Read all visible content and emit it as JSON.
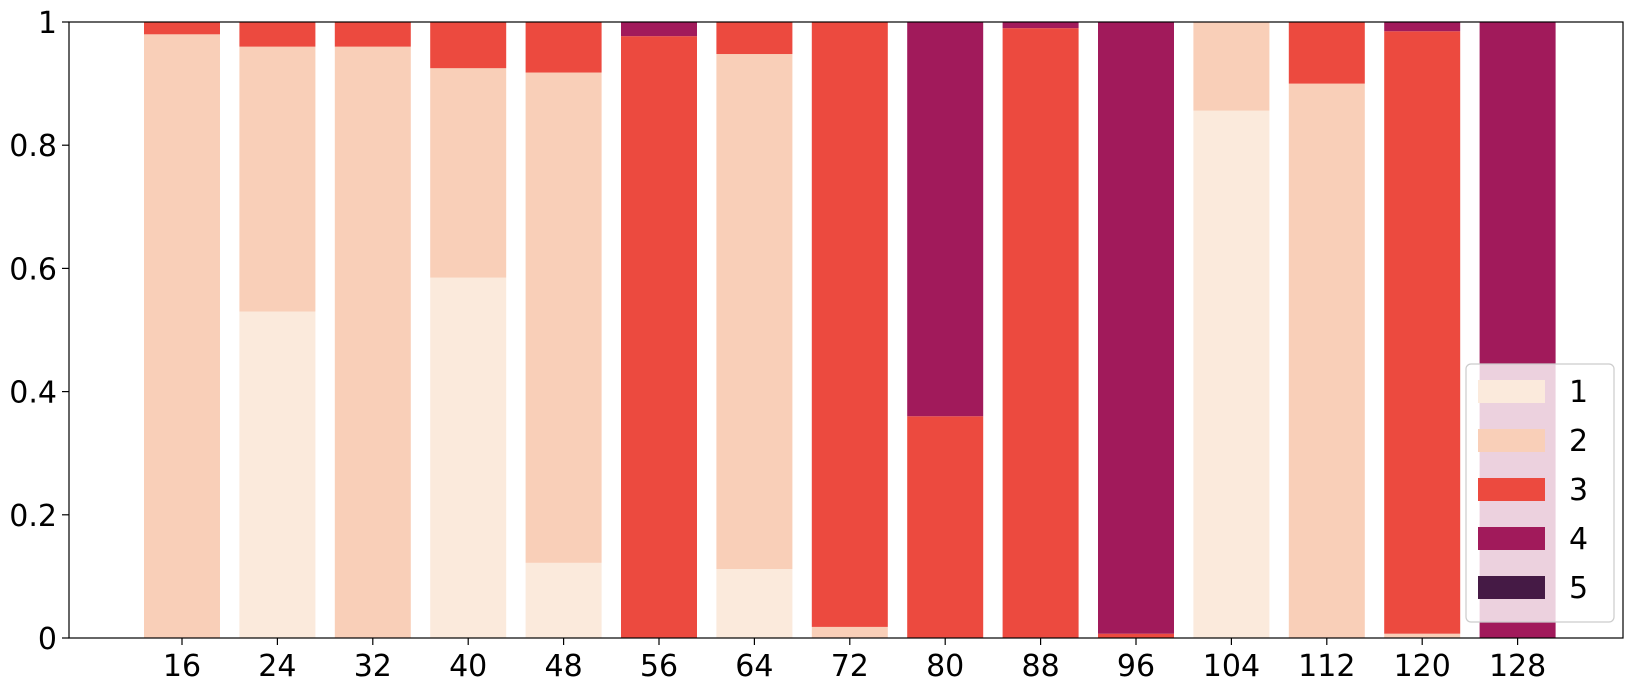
{
  "chart_data": {
    "type": "bar",
    "stacked": true,
    "normalized": true,
    "categories": [
      "16",
      "24",
      "32",
      "40",
      "48",
      "56",
      "64",
      "72",
      "80",
      "88",
      "96",
      "104",
      "112",
      "120",
      "128"
    ],
    "series": [
      {
        "name": "1",
        "color": "#fbeadc",
        "values": [
          0,
          0.53,
          0,
          0.585,
          0.122,
          0,
          0.112,
          0,
          0,
          0,
          0,
          0.856,
          0,
          0,
          0
        ]
      },
      {
        "name": "2",
        "color": "#f9cfb8",
        "values": [
          0.98,
          0.43,
          0.96,
          0.34,
          0.796,
          0,
          0.836,
          0.018,
          0,
          0,
          0,
          0.144,
          0.9,
          0.007,
          0
        ]
      },
      {
        "name": "3",
        "color": "#ec4a3f",
        "values": [
          0.02,
          0.04,
          0.04,
          0.075,
          0.082,
          0.977,
          0.052,
          0.982,
          0.36,
          0.99,
          0.007,
          0,
          0.1,
          0.978,
          0
        ]
      },
      {
        "name": "4",
        "color": "#a11a5b",
        "values": [
          0,
          0,
          0,
          0,
          0,
          0.023,
          0,
          0,
          0.64,
          0.01,
          0.993,
          0,
          0,
          0.015,
          1.0
        ]
      },
      {
        "name": "5",
        "color": "#451a45",
        "values": [
          0,
          0,
          0,
          0,
          0,
          0,
          0,
          0,
          0,
          0,
          0,
          0,
          0,
          0,
          0
        ]
      }
    ],
    "title": "",
    "xlabel": "",
    "ylabel": "",
    "ylim": [
      0,
      1
    ],
    "yticks": [
      "0",
      "0.2",
      "0.4",
      "0.6",
      "0.8",
      "1"
    ],
    "grid": false,
    "legend_position": "lower-right"
  }
}
